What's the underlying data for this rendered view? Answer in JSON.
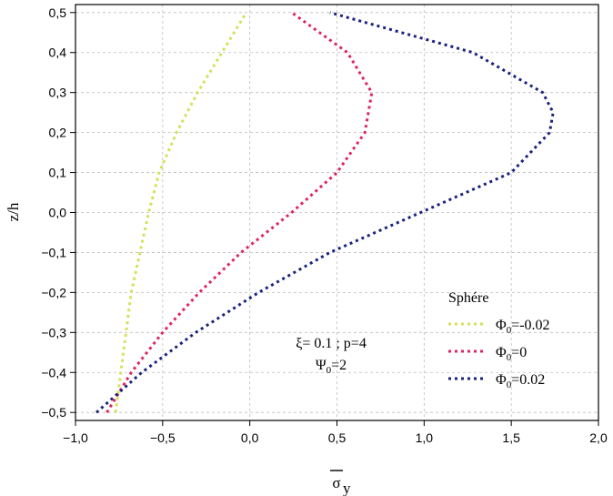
{
  "chart_data": {
    "type": "line",
    "xlabel_main": "σ",
    "xlabel_sub": "y",
    "ylabel": "z/h",
    "xlim": [
      -1.0,
      2.0
    ],
    "ylim": [
      -0.52,
      0.52
    ],
    "xticks": [
      "−1,0",
      "−0,5",
      "0,0",
      "0,5",
      "1,0",
      "1,5",
      "2,0"
    ],
    "yticks": [
      "−0,5",
      "−0,4",
      "−0,3",
      "−0,2",
      "−0,1",
      "0,0",
      "0,1",
      "0,2",
      "0,3",
      "0,4",
      "0,5"
    ],
    "grid": true,
    "legend_title": "Sphére",
    "legend_position": "bottom-right",
    "annotations": [
      {
        "text": "ξ= 0.1 ; p=4"
      },
      {
        "main": "Ψ",
        "sub": "0",
        "rest": "=2"
      }
    ],
    "series": [
      {
        "name_main": "Φ",
        "name_sub": "0",
        "name_rest": "=-0.02",
        "color": "#d4e157",
        "y": [
          -0.5,
          -0.4,
          -0.3,
          -0.2,
          -0.1,
          0.0,
          0.1,
          0.2,
          0.3,
          0.4,
          0.5
        ],
        "x": [
          -0.77,
          -0.74,
          -0.71,
          -0.68,
          -0.63,
          -0.58,
          -0.52,
          -0.42,
          -0.3,
          -0.16,
          -0.02
        ]
      },
      {
        "name_main": "Φ",
        "name_sub": "0",
        "name_rest": "=0",
        "color": "#e0245e",
        "y": [
          -0.5,
          -0.4,
          -0.3,
          -0.2,
          -0.1,
          0.0,
          0.1,
          0.2,
          0.3,
          0.4,
          0.5
        ],
        "x": [
          -0.82,
          -0.68,
          -0.5,
          -0.29,
          -0.05,
          0.24,
          0.5,
          0.66,
          0.7,
          0.56,
          0.24
        ]
      },
      {
        "name_main": "Φ",
        "name_sub": "0",
        "name_rest": "=0.02",
        "color": "#1a237e",
        "y": [
          -0.5,
          -0.4,
          -0.3,
          -0.2,
          -0.1,
          0.0,
          0.1,
          0.2,
          0.25,
          0.3,
          0.4,
          0.5
        ],
        "x": [
          -0.88,
          -0.62,
          -0.31,
          0.05,
          0.46,
          0.98,
          1.5,
          1.72,
          1.74,
          1.68,
          1.28,
          0.46
        ]
      }
    ]
  }
}
